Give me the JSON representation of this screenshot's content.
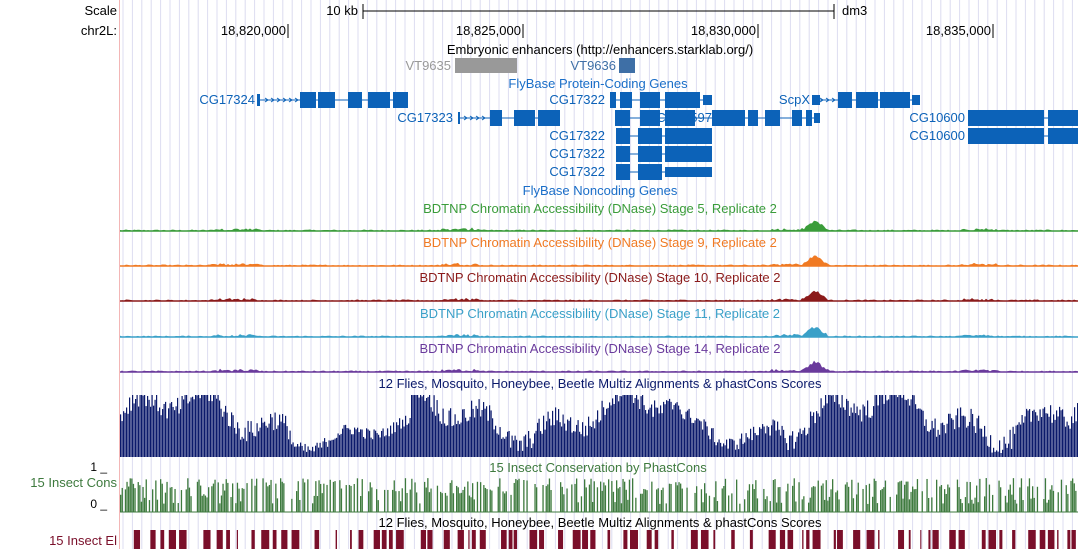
{
  "side_labels": {
    "scale": "Scale",
    "chrom": "chr2L:",
    "cons_track": "15 Insect Cons",
    "cons_max": "1 _",
    "cons_min": "0 _",
    "el_track": "15 Insect El"
  },
  "ruler": {
    "scale_label": "10 kb",
    "assembly": "dm3",
    "positions": [
      "18,820,000",
      "18,825,000",
      "18,830,000",
      "18,835,000"
    ]
  },
  "enhancers": {
    "title": "Embryonic enhancers (http://enhancers.starklab.org/)",
    "items": [
      {
        "name": "VT9635",
        "color": "#999999"
      },
      {
        "name": "VT9636",
        "color": "#3e6fa6"
      }
    ]
  },
  "genes": {
    "title": "FlyBase Protein-Coding Genes",
    "noncoding_title": "FlyBase Noncoding Genes",
    "color": "#0c62b8",
    "labels": [
      "CG17324",
      "CG17323",
      "CG17322",
      "CG17597",
      "ScpX",
      "CG10600",
      "CG10600",
      "CG17322",
      "CG17322",
      "CG17322"
    ]
  },
  "dnase_tracks": [
    {
      "title": "BDTNP Chromatin Accessibility (DNase) Stage 5, Replicate 2",
      "color": "#3a9c3a"
    },
    {
      "title": "BDTNP Chromatin Accessibility (DNase) Stage 9, Replicate 2",
      "color": "#f07a23"
    },
    {
      "title": "BDTNP Chromatin Accessibility (DNase) Stage 10, Replicate 2",
      "color": "#8b1a1a"
    },
    {
      "title": "BDTNP Chromatin Accessibility (DNase) Stage 11, Replicate 2",
      "color": "#3aa0c8"
    },
    {
      "title": "BDTNP Chromatin Accessibility (DNase) Stage 14, Replicate 2",
      "color": "#6a3a9c"
    }
  ],
  "multiz": {
    "title": "12 Flies, Mosquito, Honeybee, Beetle Multiz Alignments & phastCons Scores",
    "color": "#0b1a6b"
  },
  "phastcons": {
    "title": "15 Insect Conservation by PhastCons",
    "color": "#3e7a3e"
  },
  "elements": {
    "title": "12 Flies, Mosquito, Honeybee, Beetle Multiz Alignments & phastCons Scores",
    "color": "#7a0f2a"
  }
}
